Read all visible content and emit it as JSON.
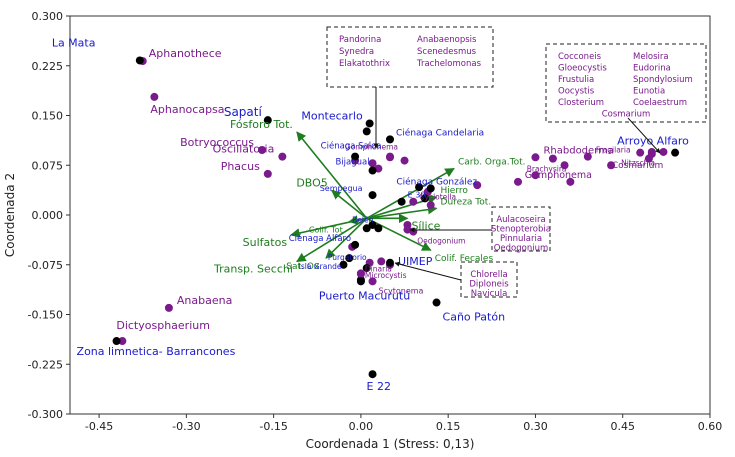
{
  "chart_data": {
    "type": "scatter",
    "title": "",
    "xlabel": "Coordenada 1 (Stress: 0,13)",
    "ylabel": "Coordenada 2",
    "xlim": [
      -0.5,
      0.6
    ],
    "ylim": [
      -0.3,
      0.3
    ],
    "xticks": [
      "-0.45",
      "-0.30",
      "-0.15",
      "0.00",
      "0.15",
      "0.30",
      "0.45",
      "0.60"
    ],
    "yticks": [
      "0.300",
      "0.225",
      "0.150",
      "0.075",
      "0.000",
      "-0.075",
      "-0.150",
      "-0.225",
      "-0.300"
    ],
    "colors": {
      "sites": "#1a1acc",
      "species": "#7a1a8c",
      "vectors": "#1e7d1e",
      "site_points": "#000000",
      "species_points": "#7a1a8c"
    },
    "sites": [
      {
        "name": "La Mata",
        "x": -0.38,
        "y": 0.233,
        "size": 11
      },
      {
        "name": "Sapatí",
        "x": -0.16,
        "y": 0.143,
        "size": 12
      },
      {
        "name": "Montecarlo",
        "x": 0.01,
        "y": 0.126,
        "size": 11
      },
      {
        "name": "Ciénaga Candelaria",
        "x": 0.05,
        "y": 0.114,
        "size": 9
      },
      {
        "name": "Ciénaga Saloa",
        "x": -0.01,
        "y": 0.088,
        "size": 8.5
      },
      {
        "name": "Bijagual",
        "x": 0.02,
        "y": 0.067,
        "size": 8.5
      },
      {
        "name": "Ciénaga González",
        "x": 0.12,
        "y": 0.04,
        "size": 9
      },
      {
        "name": "Sempegua",
        "x": 0.02,
        "y": 0.03,
        "size": 8
      },
      {
        "name": "E 30",
        "x": 0.07,
        "y": 0.02,
        "size": 8
      },
      {
        "name": "Belén",
        "x": 0.01,
        "y": -0.02,
        "size": 7.5
      },
      {
        "name": "Ciénaga Alfaro",
        "x": -0.01,
        "y": -0.045,
        "size": 8.5
      },
      {
        "name": "Purgatorio",
        "x": -0.02,
        "y": -0.065,
        "size": 7.5
      },
      {
        "name": "Isla Grande",
        "x": -0.03,
        "y": -0.075,
        "size": 7.5
      },
      {
        "name": "UIMEP",
        "x": 0.05,
        "y": -0.072,
        "size": 11
      },
      {
        "name": "Puerto Macurutú",
        "x": 0.0,
        "y": -0.1,
        "size": 11
      },
      {
        "name": "Caño Patón",
        "x": 0.13,
        "y": -0.132,
        "size": 11
      },
      {
        "name": "Zona limnetica- Barrancones",
        "x": -0.42,
        "y": -0.19,
        "size": 11
      },
      {
        "name": "E 22",
        "x": 0.02,
        "y": -0.24,
        "size": 11
      },
      {
        "name": "Arroyo Alfaro",
        "x": 0.54,
        "y": 0.094,
        "size": 11
      }
    ],
    "species": [
      {
        "name": "Aphanothece",
        "x": -0.375,
        "y": 0.232,
        "size": 11
      },
      {
        "name": "Aphanocapsa",
        "x": -0.355,
        "y": 0.178,
        "size": 11
      },
      {
        "name": "Botryococcus",
        "x": -0.17,
        "y": 0.098,
        "size": 11
      },
      {
        "name": "Oscillatoria",
        "x": -0.135,
        "y": 0.088,
        "size": 11
      },
      {
        "name": "Phacus",
        "x": -0.16,
        "y": 0.062,
        "size": 11
      },
      {
        "name": "Rhabdoderma",
        "x": 0.3,
        "y": 0.087,
        "size": 10
      },
      {
        "name": "Fragilaria",
        "x": 0.39,
        "y": 0.088,
        "size": 7.5
      },
      {
        "name": "Brachysira",
        "x": 0.35,
        "y": 0.075,
        "size": 7.5
      },
      {
        "name": "Nitzschia",
        "x": 0.43,
        "y": 0.075,
        "size": 7.5
      },
      {
        "name": "Gomphonema",
        "x": 0.36,
        "y": 0.05,
        "size": 9.5
      },
      {
        "name": "Gomphonema",
        "x": 0.05,
        "y": 0.087,
        "size": 7.5
      },
      {
        "name": "Cyclotella",
        "x": 0.09,
        "y": 0.02,
        "size": 7.5
      },
      {
        "name": "Oedogonium",
        "x": 0.09,
        "y": -0.025,
        "size": 7.5
      },
      {
        "name": "Cosmarium",
        "x": 0.5,
        "y": 0.095,
        "size": 9
      },
      {
        "name": "Anabaena",
        "x": -0.33,
        "y": -0.14,
        "size": 11
      },
      {
        "name": "Dictyosphaerium",
        "x": -0.41,
        "y": -0.19,
        "size": 11
      },
      {
        "name": "Dinaria",
        "x": 0.0,
        "y": -0.088,
        "size": 7.5
      },
      {
        "name": "Microcystis",
        "x": 0.0,
        "y": -0.089,
        "size": 7.5
      },
      {
        "name": "Scytonema",
        "x": 0.02,
        "y": -0.1,
        "size": 8
      }
    ],
    "extra_species_points": [
      [
        -0.01,
        0.082
      ],
      [
        0.02,
        0.078
      ],
      [
        0.03,
        0.07
      ],
      [
        0.05,
        0.088
      ],
      [
        0.075,
        0.082
      ],
      [
        0.115,
        0.035
      ],
      [
        0.12,
        0.015
      ],
      [
        0.2,
        0.045
      ],
      [
        0.27,
        0.05
      ],
      [
        0.3,
        0.06
      ],
      [
        0.33,
        0.085
      ],
      [
        0.48,
        0.094
      ],
      [
        0.5,
        0.092
      ],
      [
        0.52,
        0.095
      ],
      [
        0.495,
        0.085
      ],
      [
        0.08,
        -0.015
      ],
      [
        0.08,
        -0.022
      ],
      [
        -0.015,
        -0.048
      ],
      [
        0.015,
        -0.072
      ],
      [
        0.035,
        -0.07
      ],
      [
        0.05,
        -0.075
      ]
    ],
    "extra_site_points": [
      [
        0.015,
        0.138
      ],
      [
        0.1,
        0.042
      ],
      [
        0.11,
        0.025
      ],
      [
        0.02,
        -0.015
      ],
      [
        0.03,
        -0.02
      ],
      [
        0.01,
        -0.08
      ],
      [
        0.0,
        -0.098
      ]
    ],
    "vectors": [
      {
        "name": "Fósforo Tot.",
        "x": -0.11,
        "y": 0.125,
        "size": 11
      },
      {
        "name": "Carb. Orga.Tot.",
        "x": 0.16,
        "y": 0.07,
        "size": 9
      },
      {
        "name": "Hierro",
        "x": 0.13,
        "y": 0.027,
        "size": 9
      },
      {
        "name": "Dureza Tot.",
        "x": 0.13,
        "y": 0.01,
        "size": 9
      },
      {
        "name": "Sílice",
        "x": 0.08,
        "y": -0.005,
        "size": 11
      },
      {
        "name": "DBO5",
        "x": -0.05,
        "y": 0.037,
        "size": 11
      },
      {
        "name": "Colif. Tot.",
        "x": -0.02,
        "y": -0.01,
        "size": 8
      },
      {
        "name": "Colif. Fecales",
        "x": 0.12,
        "y": -0.053,
        "size": 9
      },
      {
        "name": "Sulfatos",
        "x": -0.12,
        "y": -0.03,
        "size": 11
      },
      {
        "name": "Transp. Secchi",
        "x": -0.11,
        "y": -0.07,
        "size": 11
      },
      {
        "name": "Sat. Ox.",
        "x": -0.06,
        "y": -0.065,
        "size": 9
      }
    ],
    "boxes": [
      {
        "columns": [
          [
            "Pandorina",
            "Synedra",
            "Elakatothrix"
          ],
          [
            "Anabaenopsis",
            "Scenedesmus",
            "Trachelomonas"
          ]
        ],
        "footer": ""
      },
      {
        "columns": [
          [
            "Cocconeis",
            "Gloeocystis",
            "Frustulia",
            "Oocystis",
            "Closterium"
          ],
          [
            "Melosira",
            "Eudorina",
            "Spondylosium",
            "Eunotia",
            "Coelaestrum"
          ]
        ],
        "footer": "Cosmarium"
      },
      {
        "columns": [
          [
            "Aulacoseira",
            "Stenopterobia",
            "Pinnularia",
            "Oedogonium"
          ]
        ],
        "footer": ""
      },
      {
        "columns": [
          [
            "Chlorella",
            "Diploneis",
            "Navicula"
          ]
        ],
        "footer": ""
      }
    ]
  }
}
